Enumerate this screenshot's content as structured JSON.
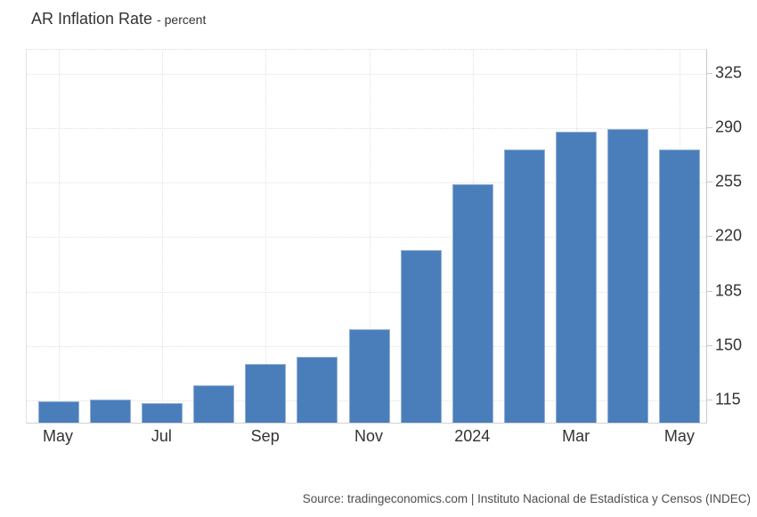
{
  "header": {
    "title": "AR Inflation Rate",
    "unit_label": "- percent"
  },
  "footer": {
    "source": "Source: tradingeconomics.com | Instituto Nacional de Estadística y Censos (INDEC)"
  },
  "chart_data": {
    "type": "bar",
    "title": "AR Inflation Rate",
    "unit": "percent",
    "categories": [
      "May 2023",
      "Jun 2023",
      "Jul 2023",
      "Aug 2023",
      "Sep 2023",
      "Oct 2023",
      "Nov 2023",
      "Dec 2023",
      "Jan 2024",
      "Feb 2024",
      "Mar 2024",
      "Apr 2024",
      "May 2024"
    ],
    "values": [
      114.2,
      115.6,
      113.4,
      124.4,
      138.3,
      142.7,
      160.9,
      211.4,
      254.2,
      276.2,
      287.9,
      289.4,
      276.4
    ],
    "x_tick_labels": [
      "May",
      "Jul",
      "Sep",
      "Nov",
      "2024",
      "Mar",
      "May"
    ],
    "x_tick_slots": [
      0,
      2,
      4,
      6,
      8,
      10,
      12
    ],
    "y_ticks": [
      115,
      150,
      185,
      220,
      255,
      290,
      325
    ],
    "ylim": [
      100.5,
      340.5
    ],
    "xlabel": "",
    "ylabel": "percent",
    "legend": "none",
    "grid": "dotted",
    "bar_color": "#4a7ebb",
    "bar_border_color": "#92b1d8",
    "grid_color": "#e0e0e0",
    "axis_text_color": "#333333"
  }
}
